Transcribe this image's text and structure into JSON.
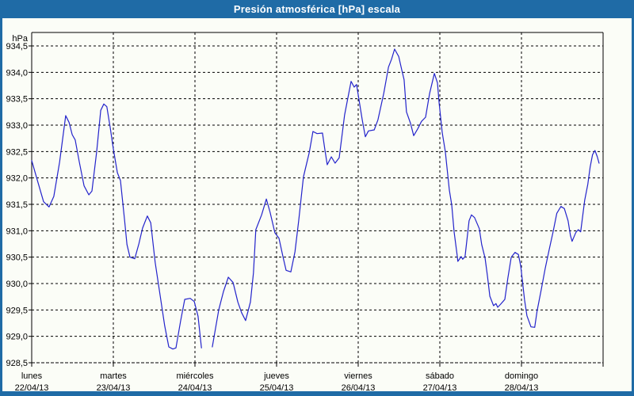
{
  "window": {
    "frame_color": "#1f6ba6",
    "background_color": "#fbfdf7"
  },
  "chart_data": {
    "type": "line",
    "title": "Presión atmosférica [hPa] escala",
    "unit_label": "hPa",
    "grid": {
      "dashed": true,
      "color": "#000000",
      "visible": true
    },
    "legend": {
      "visible": false
    },
    "y_axis": {
      "min": 928.5,
      "max": 934.5,
      "step": 0.5,
      "tick_labels": [
        "934,5",
        "934,0",
        "933,5",
        "933,0",
        "932,5",
        "932,0",
        "931,5",
        "931,0",
        "930,5",
        "930,0",
        "929,5",
        "929,0",
        "928,5"
      ]
    },
    "x_axis": {
      "total_hours": 168,
      "days": [
        {
          "name": "lunes",
          "date": "22/04/13"
        },
        {
          "name": "martes",
          "date": "23/04/13"
        },
        {
          "name": "miércoles",
          "date": "24/04/13"
        },
        {
          "name": "jueves",
          "date": "25/04/13"
        },
        {
          "name": "viernes",
          "date": "26/04/13"
        },
        {
          "name": "sábado",
          "date": "27/04/13"
        },
        {
          "name": "domingo",
          "date": "28/04/13"
        }
      ]
    },
    "series": [
      {
        "name": "presion_atmosferica_hPa",
        "color": "#2323cb",
        "points": [
          [
            0,
            932.33
          ],
          [
            1.9,
            931.9
          ],
          [
            3.5,
            931.55
          ],
          [
            5.1,
            931.45
          ],
          [
            6.5,
            931.65
          ],
          [
            8.2,
            932.3
          ],
          [
            10,
            933.18
          ],
          [
            11,
            933.05
          ],
          [
            11.9,
            932.82
          ],
          [
            12.8,
            932.72
          ],
          [
            14,
            932.3
          ],
          [
            15.4,
            931.85
          ],
          [
            16.8,
            931.68
          ],
          [
            17.7,
            931.75
          ],
          [
            19.1,
            932.5
          ],
          [
            20.3,
            933.28
          ],
          [
            21.2,
            933.4
          ],
          [
            22.1,
            933.35
          ],
          [
            23.1,
            932.95
          ],
          [
            24,
            932.55
          ],
          [
            25.2,
            932.1
          ],
          [
            26.1,
            931.95
          ],
          [
            27.3,
            931.2
          ],
          [
            28,
            930.74
          ],
          [
            28.9,
            930.5
          ],
          [
            30.3,
            930.47
          ],
          [
            31.5,
            930.75
          ],
          [
            32.6,
            931.05
          ],
          [
            34,
            931.28
          ],
          [
            35,
            931.15
          ],
          [
            36.3,
            930.4
          ],
          [
            37.7,
            929.8
          ],
          [
            39.1,
            929.2
          ],
          [
            40.3,
            928.8
          ],
          [
            41.5,
            928.76
          ],
          [
            42.4,
            928.78
          ],
          [
            43.8,
            929.3
          ],
          [
            45,
            929.7
          ],
          [
            46.6,
            929.72
          ],
          [
            47.8,
            929.66
          ],
          [
            48.9,
            929.38
          ],
          [
            49.9,
            928.78
          ],
          [
            51.5,
            null
          ],
          [
            53.1,
            928.8
          ],
          [
            53.8,
            929.06
          ],
          [
            55,
            929.5
          ],
          [
            56.4,
            929.85
          ],
          [
            57.8,
            930.12
          ],
          [
            59.2,
            930.02
          ],
          [
            60.6,
            929.65
          ],
          [
            61.7,
            929.45
          ],
          [
            62.9,
            929.3
          ],
          [
            64.3,
            929.65
          ],
          [
            65.2,
            930.2
          ],
          [
            65.9,
            931.02
          ],
          [
            67.6,
            931.3
          ],
          [
            69,
            931.6
          ],
          [
            70.1,
            931.35
          ],
          [
            71.5,
            930.96
          ],
          [
            72.7,
            930.86
          ],
          [
            73.9,
            930.5
          ],
          [
            74.8,
            930.25
          ],
          [
            76.2,
            930.22
          ],
          [
            77.4,
            930.6
          ],
          [
            78.5,
            931.19
          ],
          [
            79.9,
            932.02
          ],
          [
            81.6,
            932.48
          ],
          [
            82.7,
            932.88
          ],
          [
            83.9,
            932.84
          ],
          [
            85.5,
            932.85
          ],
          [
            86.2,
            932.54
          ],
          [
            86.9,
            932.25
          ],
          [
            88.1,
            932.4
          ],
          [
            89.2,
            932.28
          ],
          [
            90.4,
            932.38
          ],
          [
            92,
            933.19
          ],
          [
            93.9,
            933.83
          ],
          [
            94.8,
            933.72
          ],
          [
            95.5,
            933.77
          ],
          [
            97.2,
            933.09
          ],
          [
            98.1,
            932.78
          ],
          [
            99,
            932.89
          ],
          [
            100.7,
            932.91
          ],
          [
            101.8,
            933.1
          ],
          [
            103.5,
            933.6
          ],
          [
            104.9,
            934.1
          ],
          [
            105.8,
            934.25
          ],
          [
            106.7,
            934.44
          ],
          [
            107.9,
            934.3
          ],
          [
            108.8,
            934.05
          ],
          [
            109.5,
            933.86
          ],
          [
            110.2,
            933.25
          ],
          [
            111.4,
            933.03
          ],
          [
            112.3,
            932.8
          ],
          [
            113.5,
            932.93
          ],
          [
            114.6,
            933.07
          ],
          [
            115.8,
            933.15
          ],
          [
            117,
            933.6
          ],
          [
            118.4,
            933.98
          ],
          [
            119.3,
            933.8
          ],
          [
            119.8,
            933.42
          ],
          [
            120.7,
            932.86
          ],
          [
            121.6,
            932.5
          ],
          [
            122.8,
            931.77
          ],
          [
            123.5,
            931.49
          ],
          [
            124.2,
            930.98
          ],
          [
            125.1,
            930.53
          ],
          [
            125.3,
            930.42
          ],
          [
            126.3,
            930.51
          ],
          [
            126.7,
            930.46
          ],
          [
            127.4,
            930.51
          ],
          [
            128.6,
            931.19
          ],
          [
            129.3,
            931.3
          ],
          [
            130.2,
            931.25
          ],
          [
            131.6,
            931.04
          ],
          [
            132.3,
            930.74
          ],
          [
            133.3,
            930.48
          ],
          [
            134,
            930.14
          ],
          [
            134.7,
            929.76
          ],
          [
            135.8,
            929.58
          ],
          [
            136.5,
            929.62
          ],
          [
            137,
            929.55
          ],
          [
            137.9,
            929.61
          ],
          [
            139.1,
            929.7
          ],
          [
            140,
            930.1
          ],
          [
            141,
            930.5
          ],
          [
            142.1,
            930.59
          ],
          [
            143.1,
            930.55
          ],
          [
            143.8,
            930.33
          ],
          [
            144.9,
            929.69
          ],
          [
            145.6,
            929.39
          ],
          [
            146.8,
            929.18
          ],
          [
            147.9,
            929.17
          ],
          [
            148.6,
            929.48
          ],
          [
            149.8,
            929.88
          ],
          [
            151,
            930.29
          ],
          [
            152.1,
            930.63
          ],
          [
            153.3,
            930.98
          ],
          [
            154.4,
            931.33
          ],
          [
            155.6,
            931.46
          ],
          [
            156.6,
            931.42
          ],
          [
            157.7,
            931.19
          ],
          [
            158.4,
            930.91
          ],
          [
            158.9,
            930.8
          ],
          [
            160,
            930.97
          ],
          [
            160.7,
            931.02
          ],
          [
            161.4,
            930.98
          ],
          [
            162.6,
            931.58
          ],
          [
            163.5,
            931.88
          ],
          [
            164.2,
            932.21
          ],
          [
            164.9,
            932.44
          ],
          [
            165.6,
            932.52
          ],
          [
            166.3,
            932.4
          ],
          [
            166.8,
            932.28
          ]
        ]
      }
    ]
  }
}
